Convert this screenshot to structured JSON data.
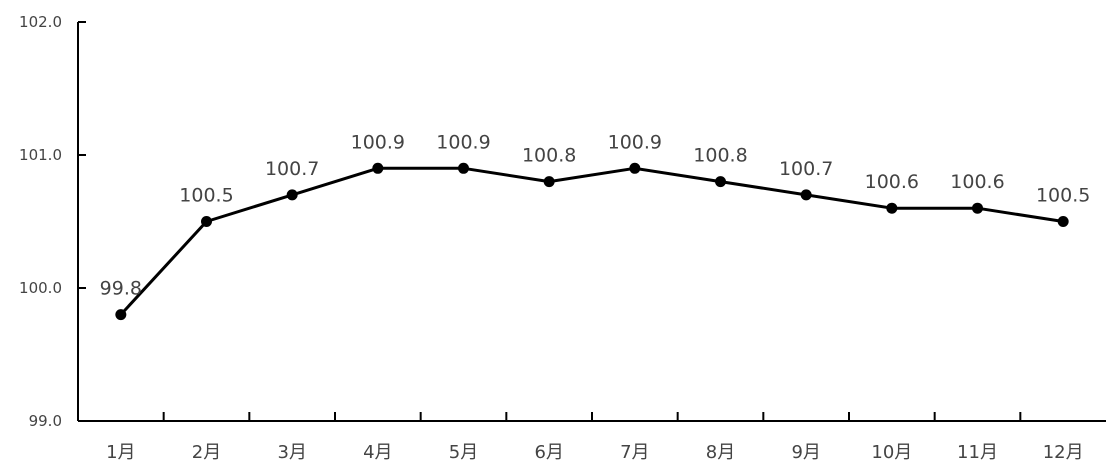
{
  "chart_data": {
    "type": "line",
    "title": "",
    "xlabel": "",
    "ylabel": "",
    "categories": [
      "1月",
      "2月",
      "3月",
      "4月",
      "5月",
      "6月",
      "7月",
      "8月",
      "9月",
      "10月",
      "11月",
      "12月"
    ],
    "series": [
      {
        "values": [
          99.8,
          100.5,
          100.7,
          100.9,
          100.9,
          100.8,
          100.9,
          100.8,
          100.7,
          100.6,
          100.6,
          100.5
        ],
        "data_labels": [
          "99.8",
          "100.5",
          "100.7",
          "100.9",
          "100.9",
          "100.8",
          "100.9",
          "100.8",
          "100.7",
          "100.6",
          "100.6",
          "100.5"
        ],
        "color": "#000000"
      }
    ],
    "ylim": [
      99.0,
      102.0
    ],
    "y_ticks": [
      99.0,
      100.0,
      101.0,
      102.0
    ],
    "y_tick_labels": [
      "99.0",
      "100.0",
      "101.0",
      "102.0"
    ],
    "grid": false,
    "legend": "none",
    "markers": "filled-circle"
  }
}
